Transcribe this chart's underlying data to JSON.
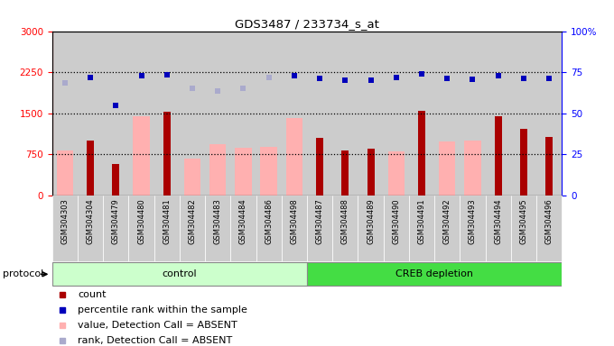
{
  "title": "GDS3487 / 233734_s_at",
  "samples": [
    "GSM304303",
    "GSM304304",
    "GSM304479",
    "GSM304480",
    "GSM304481",
    "GSM304482",
    "GSM304483",
    "GSM304484",
    "GSM304486",
    "GSM304498",
    "GSM304487",
    "GSM304488",
    "GSM304489",
    "GSM304490",
    "GSM304491",
    "GSM304492",
    "GSM304493",
    "GSM304494",
    "GSM304495",
    "GSM304496"
  ],
  "count_values": [
    null,
    1000,
    580,
    null,
    1530,
    null,
    null,
    null,
    null,
    null,
    1060,
    820,
    860,
    null,
    1540,
    null,
    null,
    1440,
    1210,
    1070
  ],
  "absent_bar_values": [
    820,
    null,
    null,
    1450,
    null,
    680,
    930,
    870,
    880,
    1420,
    null,
    null,
    null,
    810,
    null,
    980,
    1010,
    null,
    null,
    null
  ],
  "rank_absent_dots": [
    2050,
    null,
    null,
    null,
    null,
    1960,
    1910,
    1960,
    2160,
    null,
    null,
    null,
    null,
    null,
    null,
    null,
    null,
    null,
    null,
    null
  ],
  "percentile_present": [
    null,
    2150,
    1650,
    2190,
    2200,
    null,
    null,
    null,
    null,
    2190,
    2140,
    2100,
    2100,
    2160,
    2220,
    2130,
    2120,
    2190,
    2130,
    2140
  ],
  "control_count": 10,
  "left_ylim": [
    0,
    3000
  ],
  "right_ylim": [
    0,
    100
  ],
  "left_yticks": [
    0,
    750,
    1500,
    2250,
    3000
  ],
  "right_yticks": [
    0,
    25,
    50,
    75,
    100
  ],
  "right_yticklabels": [
    "0",
    "25",
    "50",
    "75",
    "100%"
  ],
  "bar_color_dark": "#AA0000",
  "bar_color_absent": "#FFB0B0",
  "dot_color_present": "#0000BB",
  "dot_color_absent": "#AAAACC",
  "sample_bg_color": "#CCCCCC",
  "group_bg_control": "#CCFFCC",
  "group_bg_creb": "#44DD44",
  "legend_bg": "#DDDDDD",
  "legend_items": [
    {
      "color": "#AA0000",
      "label": "count"
    },
    {
      "color": "#0000BB",
      "label": "percentile rank within the sample"
    },
    {
      "color": "#FFB0B0",
      "label": "value, Detection Call = ABSENT"
    },
    {
      "color": "#AAAACC",
      "label": "rank, Detection Call = ABSENT"
    }
  ]
}
